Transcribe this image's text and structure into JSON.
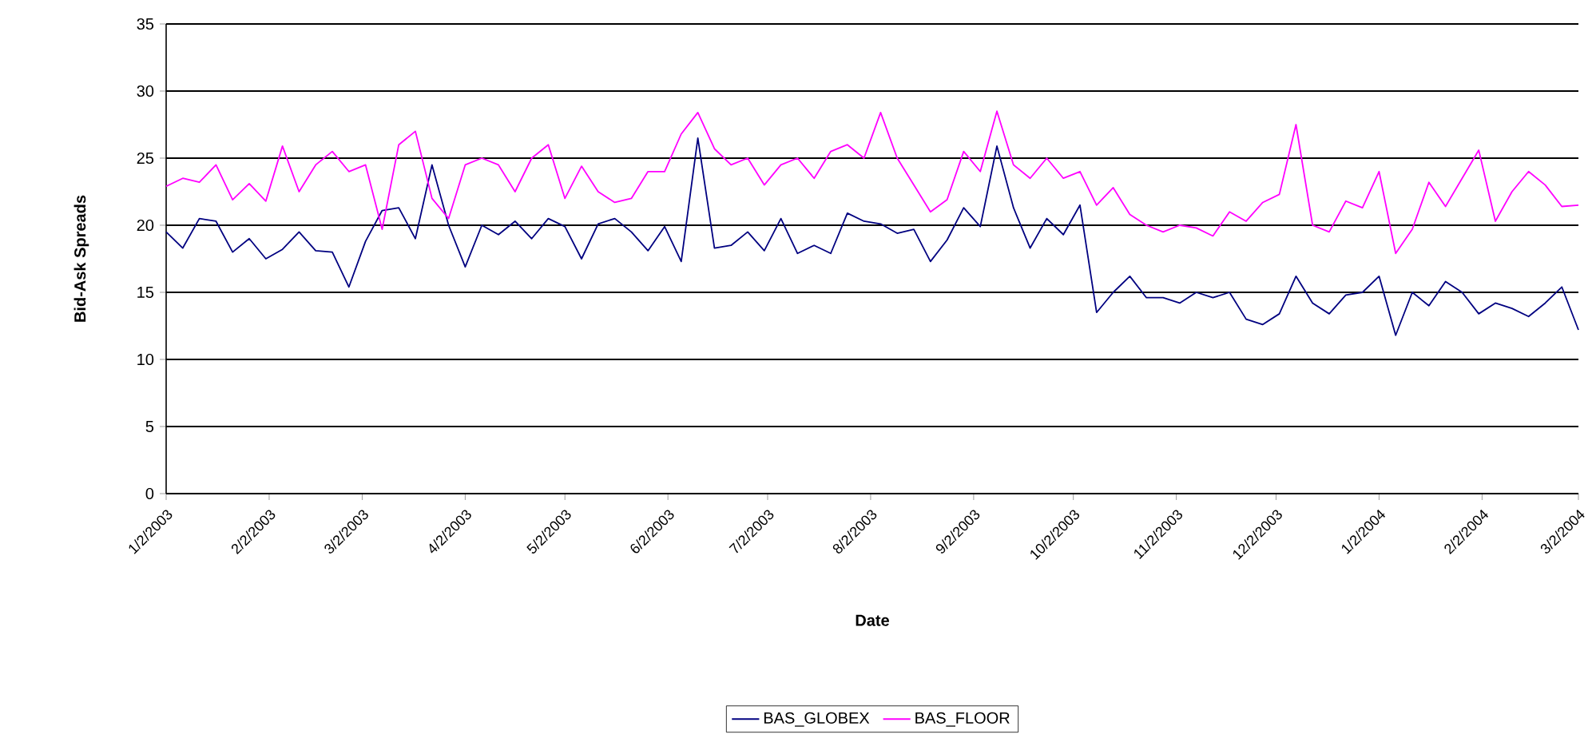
{
  "chart_data": {
    "type": "line",
    "xlabel": "Date",
    "ylabel": "Bid-Ask Spreads",
    "x": [
      "2003-01-02",
      "2003-01-07",
      "2003-01-12",
      "2003-01-17",
      "2003-01-22",
      "2003-01-27",
      "2003-02-01",
      "2003-02-06",
      "2003-02-11",
      "2003-02-16",
      "2003-02-21",
      "2003-02-26",
      "2003-03-03",
      "2003-03-08",
      "2003-03-13",
      "2003-03-18",
      "2003-03-23",
      "2003-03-28",
      "2003-04-02",
      "2003-04-07",
      "2003-04-12",
      "2003-04-17",
      "2003-04-22",
      "2003-04-27",
      "2003-05-02",
      "2003-05-07",
      "2003-05-12",
      "2003-05-17",
      "2003-05-22",
      "2003-05-27",
      "2003-06-01",
      "2003-06-06",
      "2003-06-11",
      "2003-06-16",
      "2003-06-21",
      "2003-06-26",
      "2003-07-01",
      "2003-07-06",
      "2003-07-11",
      "2003-07-16",
      "2003-07-21",
      "2003-07-26",
      "2003-07-31",
      "2003-08-05",
      "2003-08-10",
      "2003-08-15",
      "2003-08-20",
      "2003-08-25",
      "2003-08-30",
      "2003-09-04",
      "2003-09-09",
      "2003-09-14",
      "2003-09-19",
      "2003-09-24",
      "2003-09-29",
      "2003-10-04",
      "2003-10-09",
      "2003-10-14",
      "2003-10-19",
      "2003-10-24",
      "2003-10-29",
      "2003-11-03",
      "2003-11-08",
      "2003-11-13",
      "2003-11-18",
      "2003-11-23",
      "2003-11-28",
      "2003-12-03",
      "2003-12-08",
      "2003-12-13",
      "2003-12-18",
      "2003-12-23",
      "2003-12-28",
      "2004-01-02",
      "2004-01-07",
      "2004-01-12",
      "2004-01-17",
      "2004-01-22",
      "2004-01-27",
      "2004-02-01",
      "2004-02-06",
      "2004-02-11",
      "2004-02-16",
      "2004-02-21",
      "2004-02-26",
      "2004-03-02"
    ],
    "series": [
      {
        "name": "BAS_GLOBEX",
        "color": "#000080",
        "values": [
          19.5,
          18.3,
          20.5,
          20.3,
          18.0,
          19.0,
          17.5,
          18.2,
          19.5,
          18.1,
          18.0,
          15.4,
          18.8,
          21.1,
          21.3,
          19.0,
          24.5,
          20.0,
          16.9,
          20.0,
          19.3,
          20.3,
          19.0,
          20.5,
          19.9,
          17.5,
          20.1,
          20.5,
          19.5,
          18.1,
          19.9,
          17.3,
          26.5,
          18.3,
          18.5,
          19.5,
          18.1,
          20.5,
          17.9,
          18.5,
          17.9,
          20.9,
          20.3,
          20.1,
          19.4,
          19.7,
          17.3,
          18.9,
          21.3,
          19.9,
          25.9,
          21.3,
          18.3,
          20.5,
          19.3,
          21.5,
          13.5,
          15.0,
          16.2,
          14.6,
          14.6,
          14.2,
          15.0,
          14.6,
          15.0,
          13.0,
          12.6,
          13.4,
          16.2,
          14.2,
          13.4,
          14.8,
          15.0,
          16.2,
          11.8,
          15.0,
          14.0,
          15.8,
          15.0,
          13.4,
          14.2,
          13.8,
          13.2,
          14.2,
          15.4,
          12.2
        ]
      },
      {
        "name": "BAS_FLOOR",
        "color": "#ff00ff",
        "values": [
          22.9,
          23.5,
          23.2,
          24.5,
          21.9,
          23.1,
          21.8,
          25.9,
          22.5,
          24.5,
          25.5,
          24.0,
          24.5,
          19.7,
          26.0,
          27.0,
          22.0,
          20.5,
          24.5,
          25.0,
          24.5,
          22.5,
          25.0,
          26.0,
          22.0,
          24.4,
          22.5,
          21.7,
          22.0,
          24.0,
          24.0,
          26.8,
          28.4,
          25.7,
          24.5,
          25.0,
          23.0,
          24.5,
          25.0,
          23.5,
          25.5,
          26.0,
          25.0,
          28.4,
          25.0,
          23.0,
          21.0,
          21.9,
          25.5,
          24.0,
          28.5,
          24.5,
          23.5,
          25.0,
          23.5,
          24.0,
          21.5,
          22.8,
          20.8,
          20.0,
          19.5,
          20.0,
          19.8,
          19.2,
          21.0,
          20.3,
          21.7,
          22.3,
          27.5,
          20.0,
          19.5,
          21.8,
          21.3,
          24.0,
          17.9,
          19.7,
          23.2,
          21.4,
          23.5,
          25.6,
          20.3,
          22.5,
          24.0,
          23.0,
          21.4,
          21.5
        ]
      }
    ],
    "xlim": [
      "2003-01-02",
      "2004-03-02"
    ],
    "xticks": [
      {
        "value": "2003-01-02",
        "label": "1/2/2003"
      },
      {
        "value": "2003-02-02",
        "label": "2/2/2003"
      },
      {
        "value": "2003-03-02",
        "label": "3/2/2003"
      },
      {
        "value": "2003-04-02",
        "label": "4/2/2003"
      },
      {
        "value": "2003-05-02",
        "label": "5/2/2003"
      },
      {
        "value": "2003-06-02",
        "label": "6/2/2003"
      },
      {
        "value": "2003-07-02",
        "label": "7/2/2003"
      },
      {
        "value": "2003-08-02",
        "label": "8/2/2003"
      },
      {
        "value": "2003-09-02",
        "label": "9/2/2003"
      },
      {
        "value": "2003-10-02",
        "label": "10/2/2003"
      },
      {
        "value": "2003-11-02",
        "label": "11/2/2003"
      },
      {
        "value": "2003-12-02",
        "label": "12/2/2003"
      },
      {
        "value": "2004-01-02",
        "label": "1/2/2004"
      },
      {
        "value": "2004-02-02",
        "label": "2/2/2004"
      },
      {
        "value": "2004-03-02",
        "label": "3/2/2004"
      }
    ],
    "ylim": [
      0,
      35
    ],
    "yticks": [
      0,
      5,
      10,
      15,
      20,
      25,
      30,
      35
    ],
    "grid": "y",
    "legend": "bottom",
    "marker": "none",
    "line_style": "solid"
  }
}
